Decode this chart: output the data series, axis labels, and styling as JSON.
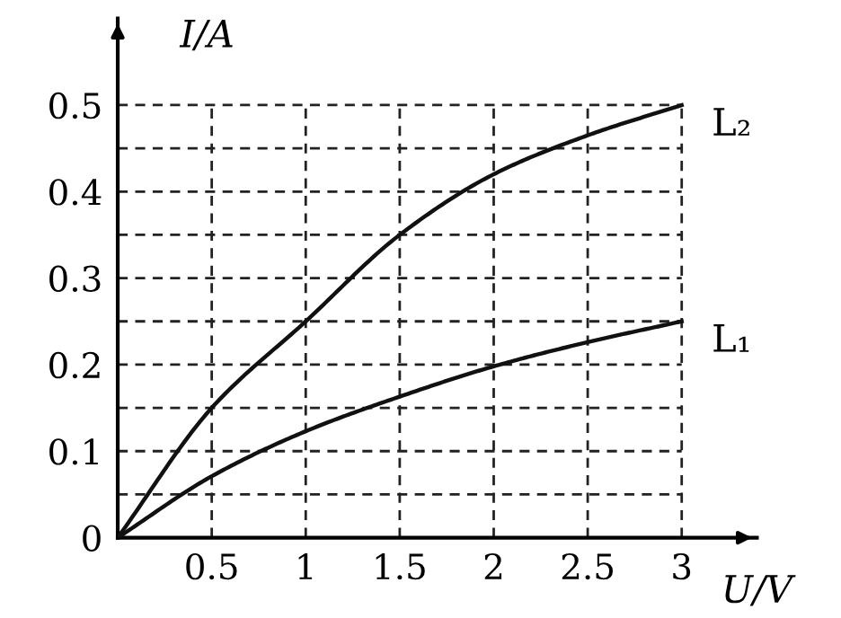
{
  "chart_data": {
    "type": "line",
    "xlabel": "U/V",
    "ylabel": "I/A",
    "x": [
      0,
      0.5,
      1,
      1.5,
      2,
      2.5,
      3
    ],
    "series": [
      {
        "name": "L₂",
        "color": "#111111",
        "values": [
          0,
          0.15,
          0.25,
          0.35,
          0.42,
          0.465,
          0.5
        ]
      },
      {
        "name": "L₁",
        "color": "#111111",
        "values": [
          0,
          0.071,
          0.123,
          0.163,
          0.198,
          0.226,
          0.25
        ]
      }
    ],
    "xlim": [
      0,
      3.4
    ],
    "ylim": [
      0,
      0.6
    ],
    "xticks": [
      0.5,
      1,
      1.5,
      2,
      2.5,
      3
    ],
    "yticks": [
      0,
      {
        "value": 0.05,
        "label": null
      },
      0.1,
      {
        "value": 0.15,
        "label": null
      },
      0.2,
      {
        "value": 0.25,
        "label": null
      },
      0.3,
      {
        "value": 0.35,
        "label": null
      },
      0.4,
      {
        "value": 0.45,
        "label": null
      },
      0.5
    ],
    "grid": true,
    "marker": "none",
    "line_style": "solid",
    "legend": false
  }
}
